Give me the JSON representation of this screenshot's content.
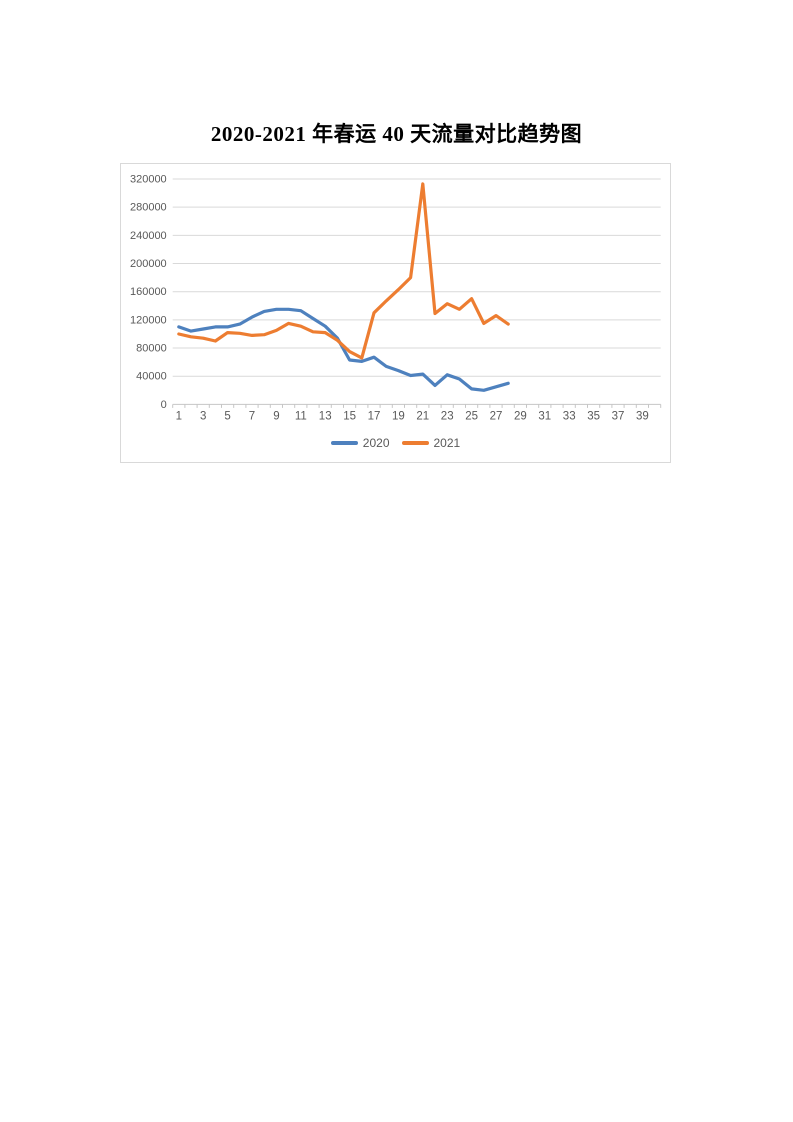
{
  "page": {
    "title": "2020-2021 年春运 40 天流量对比趋势图"
  },
  "chart_data": {
    "type": "line",
    "title": "2020-2021 年春运 40 天流量对比趋势图",
    "x": [
      1,
      2,
      3,
      4,
      5,
      6,
      7,
      8,
      9,
      10,
      11,
      12,
      13,
      14,
      15,
      16,
      17,
      18,
      19,
      20,
      21,
      22,
      23,
      24,
      25,
      26,
      27,
      28
    ],
    "series": [
      {
        "name": "2020",
        "color": "#4e81be",
        "values": [
          110000,
          104000,
          107000,
          110000,
          110000,
          114000,
          124000,
          132000,
          135000,
          135000,
          133000,
          122000,
          111000,
          94000,
          63000,
          61000,
          67000,
          54000,
          48000,
          41000,
          43000,
          27000,
          42000,
          36000,
          22000,
          20000,
          25000,
          30000
        ]
      },
      {
        "name": "2021",
        "color": "#ed7d31",
        "values": [
          100000,
          96000,
          94000,
          90000,
          102000,
          101000,
          98000,
          99000,
          105000,
          115000,
          111000,
          103000,
          102000,
          91000,
          75000,
          66000,
          130000,
          147000,
          163000,
          180000,
          313000,
          129000,
          143000,
          135000,
          150000,
          115000,
          126000,
          114000
        ]
      }
    ],
    "x_axis_categories_total": 40,
    "x_tick_labels": [
      1,
      3,
      5,
      7,
      9,
      11,
      13,
      15,
      17,
      19,
      21,
      23,
      25,
      27,
      29,
      31,
      33,
      35,
      37,
      39
    ],
    "y_tick_labels": [
      0,
      40000,
      80000,
      120000,
      160000,
      200000,
      240000,
      280000,
      320000
    ],
    "ylim": [
      0,
      320000
    ],
    "y_tick_step": 40000,
    "grid": "horizontal",
    "legend_position": "bottom",
    "colors": {
      "gridline": "#d9d9d9",
      "axis_line": "#c6c6c6",
      "tick_label": "#595959",
      "chart_border": "#d9d9d9",
      "background": "#ffffff"
    }
  }
}
